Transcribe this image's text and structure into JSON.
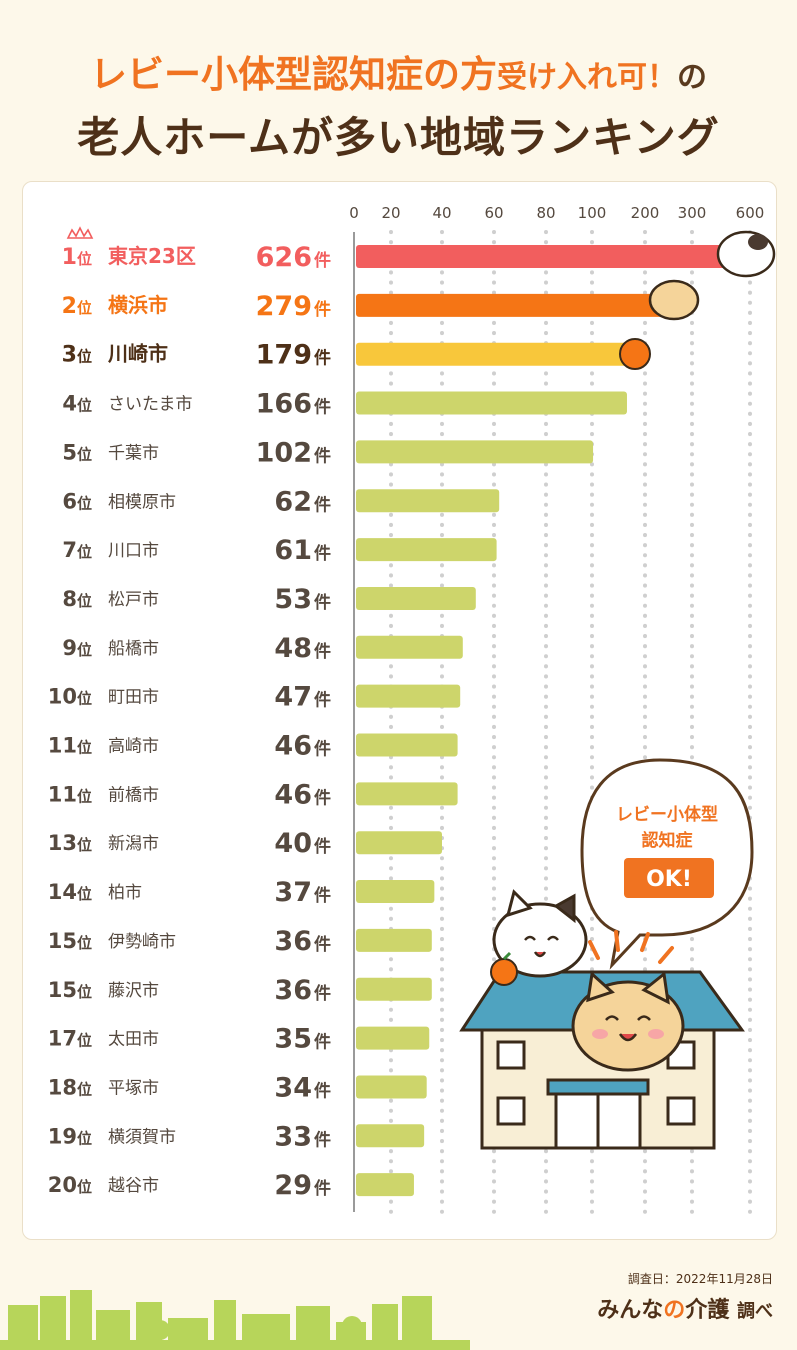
{
  "title_line1": {
    "part1": "レビー小体型認知症の方",
    "part2": "受け入れ可！",
    "part3": "の"
  },
  "title_line2": "老人ホームが多い地域ランキング",
  "rank_suffix": "位",
  "count_suffix": "件",
  "chart_data": {
    "type": "bar",
    "orientation": "horizontal",
    "title": "レビー小体型認知症の方受け入れ可！の老人ホームが多い地域ランキング",
    "x_ticks": [
      0,
      20,
      40,
      60,
      80,
      100,
      200,
      300,
      600
    ],
    "x_scale": "broken",
    "grid": true,
    "categories": [
      "東京23区",
      "横浜市",
      "川崎市",
      "さいたま市",
      "千葉市",
      "相模原市",
      "川口市",
      "松戸市",
      "船橋市",
      "町田市",
      "高崎市",
      "前橋市",
      "新潟市",
      "柏市",
      "伊勢崎市",
      "藤沢市",
      "太田市",
      "平塚市",
      "横須賀市",
      "越谷市"
    ],
    "ranks": [
      1,
      2,
      3,
      4,
      5,
      6,
      7,
      8,
      9,
      10,
      11,
      11,
      13,
      14,
      15,
      15,
      17,
      18,
      19,
      20
    ],
    "values": [
      626,
      279,
      179,
      166,
      102,
      62,
      61,
      53,
      48,
      47,
      46,
      46,
      40,
      37,
      36,
      36,
      35,
      34,
      33,
      29
    ],
    "colors": {
      "rank1": "#f25e5e",
      "rank2": "#f57515",
      "rank3": "#f8c73b",
      "others": "#cdd56b",
      "label_default": "#55493f"
    }
  },
  "bubble": {
    "line1": "レビー小体型",
    "line2": "認知症",
    "button": "OK!"
  },
  "survey_date": "調査日：2022年11月28日",
  "brand": {
    "part1": "みんな",
    "part2": "の",
    "part3": "介護",
    "part4": "調べ"
  }
}
